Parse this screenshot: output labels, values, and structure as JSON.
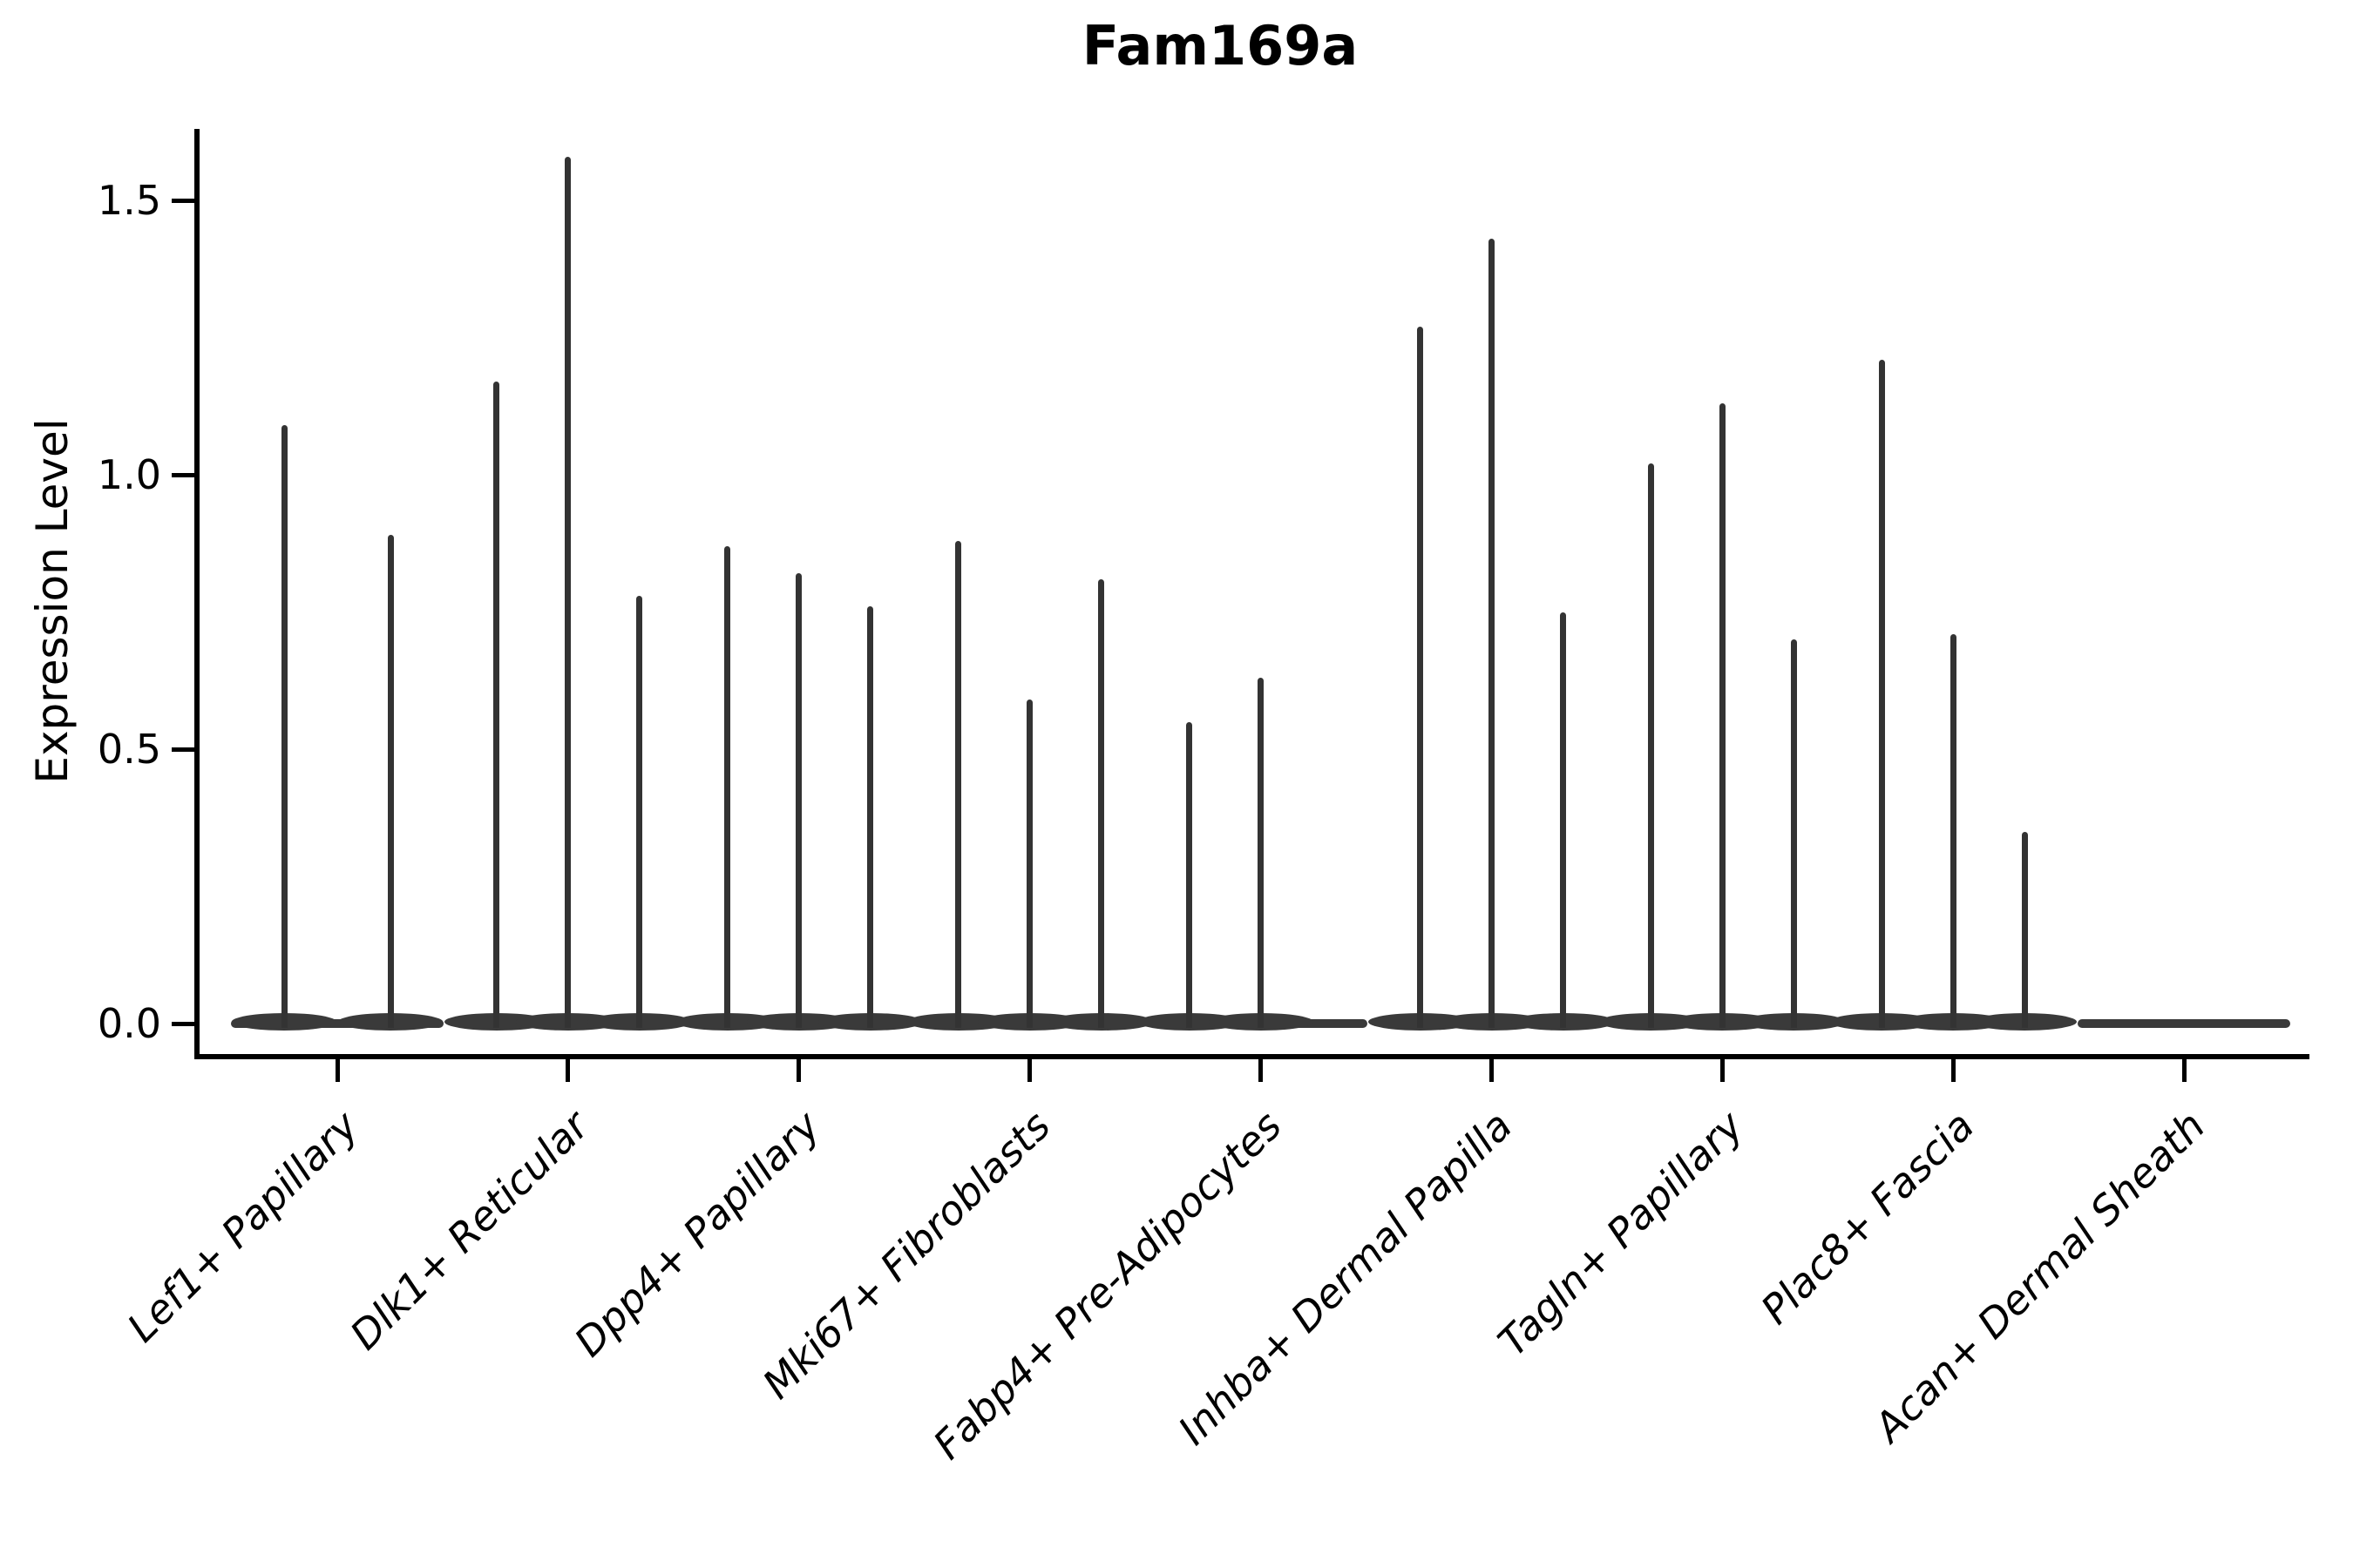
{
  "title": "Fam169a",
  "axes": {
    "ylabel": "Expression Level",
    "ytick_labels": [
      "0.0",
      "0.5",
      "1.0",
      "1.5"
    ]
  },
  "chart_data": {
    "type": "violin",
    "title": "Fam169a",
    "xlabel": "",
    "ylabel": "Expression Level",
    "ylim": [
      -0.06,
      1.63
    ],
    "yticks": [
      0.0,
      0.5,
      1.0,
      1.5
    ],
    "grid": false,
    "legend_position": "none",
    "description": "Sparse single-cell expression violin plot: each category shows up to three sub-violins (dodged samples) collapsed to a flat base at 0 with one thin tail spike reaching the maximum expression value.",
    "categories": [
      "Lef1+ Papillary",
      "Dlk1+ Reticular",
      "Dpp4+ Papillary",
      "Mki67+ Fibroblasts",
      "Fabp4+ Pre-Adipocytes",
      "Inhba+ Dermal Papilla",
      "Tagln+ Papillary",
      "Plac8+ Fascia",
      "Acan+ Dermal Sheath"
    ],
    "groups": [
      {
        "category": "Lef1+ Papillary",
        "violins": [
          {
            "offset": -61,
            "max": 1.09
          },
          {
            "offset": 61,
            "max": 0.89
          }
        ]
      },
      {
        "category": "Dlk1+ Reticular",
        "violins": [
          {
            "offset": -82,
            "max": 1.17
          },
          {
            "offset": 0,
            "max": 1.58
          },
          {
            "offset": 82,
            "max": 0.78
          }
        ]
      },
      {
        "category": "Dpp4+ Papillary",
        "violins": [
          {
            "offset": -82,
            "max": 0.87
          },
          {
            "offset": 0,
            "max": 0.82
          },
          {
            "offset": 82,
            "max": 0.76
          }
        ]
      },
      {
        "category": "Mki67+ Fibroblasts",
        "violins": [
          {
            "offset": -82,
            "max": 0.88
          },
          {
            "offset": 0,
            "max": 0.59
          },
          {
            "offset": 82,
            "max": 0.81
          }
        ]
      },
      {
        "category": "Fabp4+ Pre-Adipocytes",
        "violins": [
          {
            "offset": -82,
            "max": 0.55
          },
          {
            "offset": 0,
            "max": 0.63
          }
        ]
      },
      {
        "category": "Inhba+ Dermal Papilla",
        "violins": [
          {
            "offset": -82,
            "max": 1.27
          },
          {
            "offset": 0,
            "max": 1.43
          },
          {
            "offset": 82,
            "max": 0.75
          }
        ]
      },
      {
        "category": "Tagln+ Papillary",
        "violins": [
          {
            "offset": -82,
            "max": 1.02
          },
          {
            "offset": 0,
            "max": 1.13
          },
          {
            "offset": 82,
            "max": 0.7
          }
        ]
      },
      {
        "category": "Plac8+ Fascia",
        "violins": [
          {
            "offset": -82,
            "max": 1.21
          },
          {
            "offset": 0,
            "max": 0.71
          },
          {
            "offset": 82,
            "max": 0.35
          }
        ]
      },
      {
        "category": "Acan+ Dermal Sheath",
        "violins": []
      }
    ],
    "colors": {
      "violin": "#333333",
      "axis": "#000000",
      "text": "#000000"
    }
  }
}
